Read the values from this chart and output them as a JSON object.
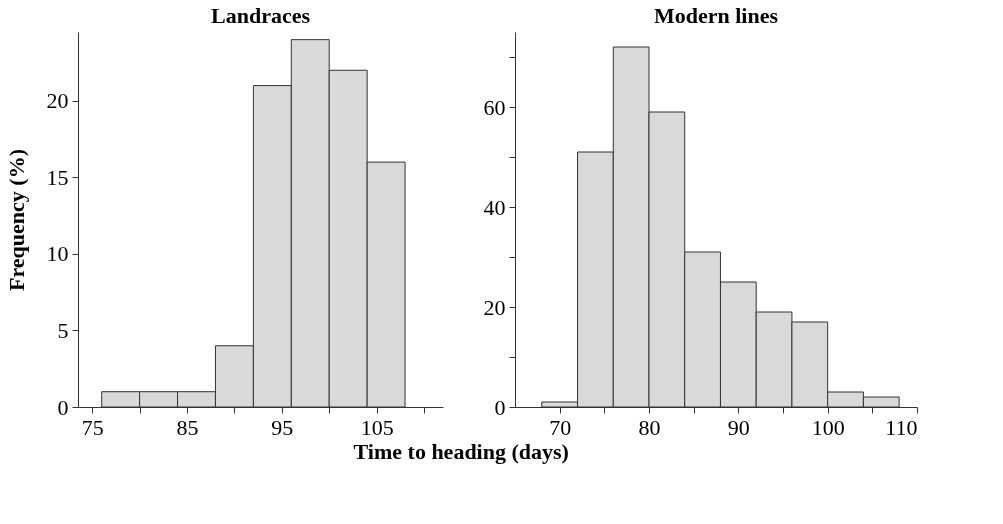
{
  "chart_data": [
    {
      "type": "histogram",
      "title": "Landraces",
      "ylabel": "Frequency (%)",
      "xlabel": "Time to heading (days)",
      "bins": [
        76,
        80,
        84,
        88,
        92,
        96,
        100,
        104,
        108
      ],
      "values": [
        1,
        1,
        1,
        4,
        21,
        24,
        22,
        16
      ],
      "color": "#d9d9d9",
      "xlim": [
        73.5,
        112
      ],
      "ylim": [
        0,
        24.5
      ],
      "xticks": [
        75,
        {
          "value": 80,
          "label": null
        },
        85,
        {
          "value": 90,
          "label": null
        },
        95,
        {
          "value": 100,
          "label": null
        },
        105,
        {
          "value": 110,
          "label": null
        }
      ],
      "yticks": [
        0,
        5,
        10,
        15,
        20
      ],
      "grid": false
    },
    {
      "type": "histogram",
      "title": "Modern lines",
      "bins": [
        68,
        72,
        76,
        80,
        84,
        88,
        92,
        96,
        100,
        104,
        108
      ],
      "values": [
        1,
        51,
        72,
        59,
        31,
        25,
        19,
        17,
        3,
        2
      ],
      "color": "#d9d9d9",
      "xlim": [
        65,
        110
      ],
      "ylim": [
        0,
        75
      ],
      "xticks": [
        70,
        {
          "value": 75,
          "label": null
        },
        80,
        {
          "value": 85,
          "label": null
        },
        90,
        {
          "value": 95,
          "label": null
        },
        100,
        {
          "value": 105,
          "label": null
        },
        110
      ],
      "yticks": [
        0,
        {
          "value": 10,
          "label": null
        },
        20,
        {
          "value": 30,
          "label": null
        },
        40,
        {
          "value": 50,
          "label": null
        },
        60,
        {
          "value": 70,
          "label": null
        }
      ],
      "grid": false
    }
  ]
}
